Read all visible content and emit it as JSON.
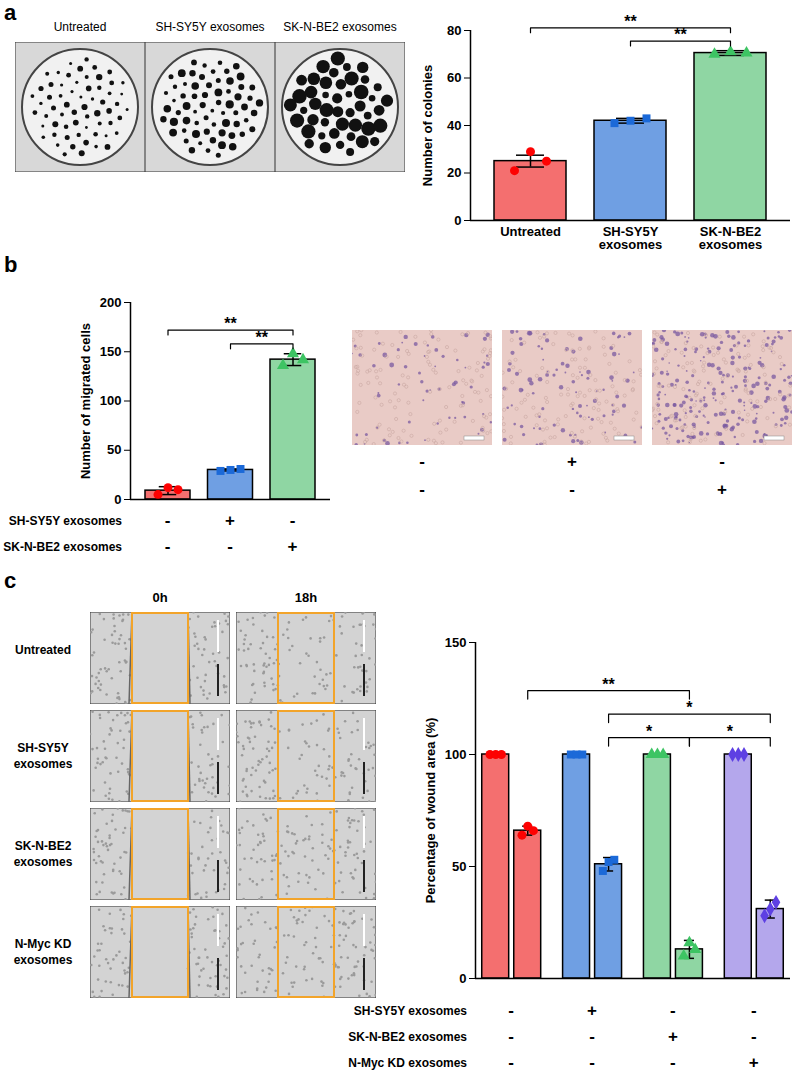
{
  "chart_data": [
    {
      "type": "bar",
      "panel": "a",
      "categories": [
        "Untreated",
        "SH-SY5Y exosomes",
        "SK-N-BE2 exosomes"
      ],
      "values": [
        25,
        42,
        70.5
      ],
      "errors": [
        2.5,
        1,
        1
      ],
      "points": [
        [
          21,
          29,
          25
        ],
        [
          41,
          42,
          43
        ],
        [
          70,
          71,
          70.5
        ]
      ],
      "colors": [
        "#f46f6f",
        "#6f9fe3",
        "#8fd6a3"
      ],
      "ylabel": "Number of colonies",
      "ylim": [
        0,
        80
      ],
      "yticks": [
        0,
        20,
        40,
        60,
        80
      ],
      "significance": [
        {
          "from": 1,
          "to": 2,
          "label": "**"
        },
        {
          "from": 0,
          "to": 2,
          "label": "**"
        }
      ]
    },
    {
      "type": "bar",
      "panel": "b",
      "categories": [
        null,
        null,
        null
      ],
      "tick_labels": "y",
      "values": [
        9,
        30,
        142
      ],
      "errors": [
        4,
        1,
        6
      ],
      "points": [
        [
          5,
          12,
          10
        ],
        [
          29,
          30,
          31
        ],
        [
          136,
          148,
          142
        ]
      ],
      "colors": [
        "#f46f6f",
        "#6f9fe3",
        "#8fd6a3"
      ],
      "ylabel": "Number of migrated cells",
      "ylim": [
        0,
        200
      ],
      "yticks": [
        0,
        50,
        100,
        150,
        200
      ],
      "significance": [
        {
          "from": 1,
          "to": 2,
          "label": "**"
        },
        {
          "from": 0,
          "to": 2,
          "label": "**"
        }
      ],
      "conditions": [
        {
          "label": "SH-SY5Y exosomes",
          "marks": [
            "-",
            "+",
            "-"
          ]
        },
        {
          "label": "SK-N-BE2 exosomes",
          "marks": [
            "-",
            "-",
            "+"
          ]
        }
      ]
    },
    {
      "type": "bar",
      "panel": "c",
      "categories": [
        null,
        null,
        null,
        null,
        null,
        null,
        null,
        null
      ],
      "tick_labels": "y",
      "values": [
        100,
        66,
        100,
        51,
        100,
        13,
        100,
        31
      ],
      "errors": [
        0,
        2,
        0,
        3,
        0,
        4,
        0,
        4
      ],
      "points": [
        [
          100,
          100,
          100
        ],
        [
          64,
          68,
          66
        ],
        [
          100,
          100,
          100
        ],
        [
          48,
          52,
          53
        ],
        [
          100,
          100,
          100
        ],
        [
          10,
          16,
          13
        ],
        [
          100,
          100,
          100
        ],
        [
          28,
          31,
          34
        ]
      ],
      "colors": [
        "#f46f6f",
        "#f46f6f",
        "#6f9fe3",
        "#6f9fe3",
        "#8fd6a3",
        "#8fd6a3",
        "#b4a7ec",
        "#b4a7ec"
      ],
      "ylabel": "Percentage of wound area (%)",
      "ylim": [
        0,
        150
      ],
      "yticks": [
        0,
        50,
        100,
        150
      ],
      "significance": [
        {
          "from": 3,
          "to": 5,
          "label": "*"
        },
        {
          "from": 5,
          "to": 7,
          "label": "*"
        },
        {
          "from": 3,
          "to": 7,
          "label": "*"
        },
        {
          "from": 1,
          "to": 5,
          "label": "**"
        }
      ],
      "conditions": [
        {
          "label": "SH-SY5Y exosomes",
          "marks": [
            "-",
            "+",
            "-",
            "-"
          ]
        },
        {
          "label": "SK-N-BE2 exosomes",
          "marks": [
            "-",
            "-",
            "+",
            "-"
          ]
        },
        {
          "label": "N-Myc KD exosomes",
          "marks": [
            "-",
            "-",
            "-",
            "+"
          ]
        }
      ]
    }
  ],
  "images": {
    "a": {
      "captions": [
        "Untreated",
        "SH-SY5Y exosomes",
        "SK-N-BE2 exosomes"
      ]
    },
    "b": {
      "marks": [
        [
          "-",
          "+",
          "-"
        ],
        [
          "-",
          "-",
          "+"
        ]
      ]
    },
    "c": {
      "columns": [
        "0h",
        "18h"
      ],
      "rows": [
        "Untreated",
        "SH-SY5Y exosomes",
        "SK-N-BE2 exosomes",
        "N-Myc KD exosomes"
      ]
    }
  }
}
